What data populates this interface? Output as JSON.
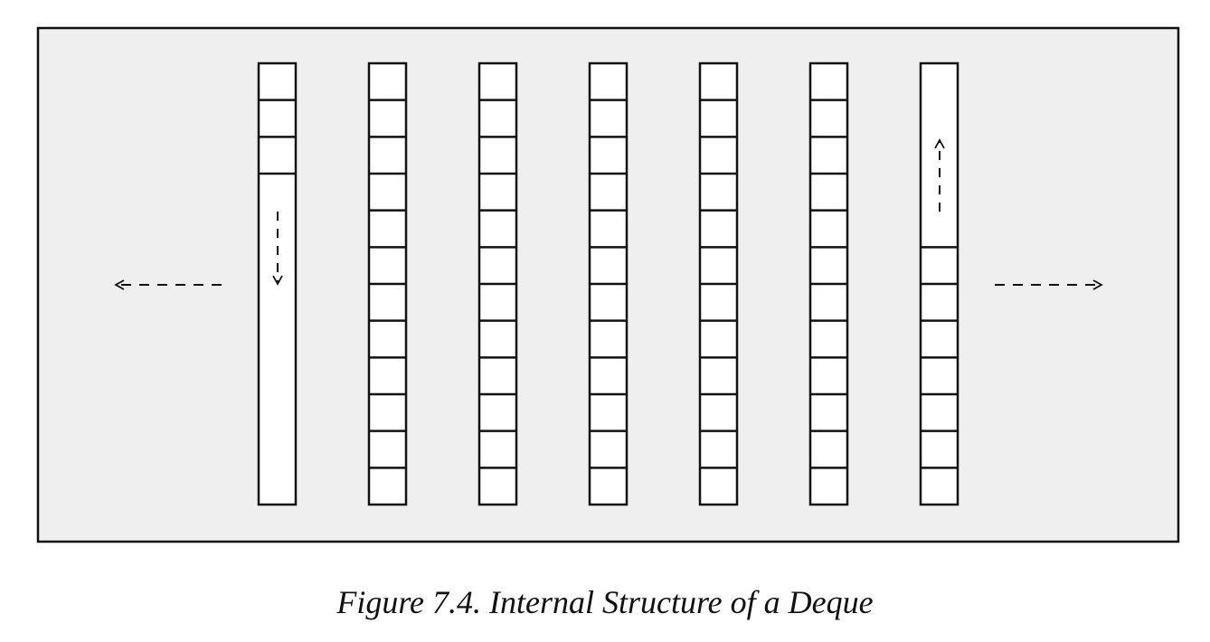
{
  "figure": {
    "caption": "Figure 7.4. Internal Structure of a Deque"
  },
  "colors": {
    "panel_background": "#efefef",
    "stroke": "#111111",
    "cell_fill": "#ffffff"
  },
  "deque": {
    "block_count": 7,
    "cells_per_block": 12,
    "blocks": [
      {
        "id": "first-block",
        "used_cells": 3,
        "fill_from": "top",
        "growth": "down"
      },
      {
        "id": "block-2",
        "used_cells": 12,
        "fill_from": "top",
        "growth": "none"
      },
      {
        "id": "block-3",
        "used_cells": 12,
        "fill_from": "top",
        "growth": "none"
      },
      {
        "id": "block-4",
        "used_cells": 12,
        "fill_from": "top",
        "growth": "none"
      },
      {
        "id": "block-5",
        "used_cells": 12,
        "fill_from": "top",
        "growth": "none"
      },
      {
        "id": "block-6",
        "used_cells": 12,
        "fill_from": "top",
        "growth": "none"
      },
      {
        "id": "last-block",
        "used_cells": 7,
        "fill_from": "bottom",
        "growth": "up"
      }
    ],
    "outer_growth": [
      "left",
      "right"
    ]
  }
}
